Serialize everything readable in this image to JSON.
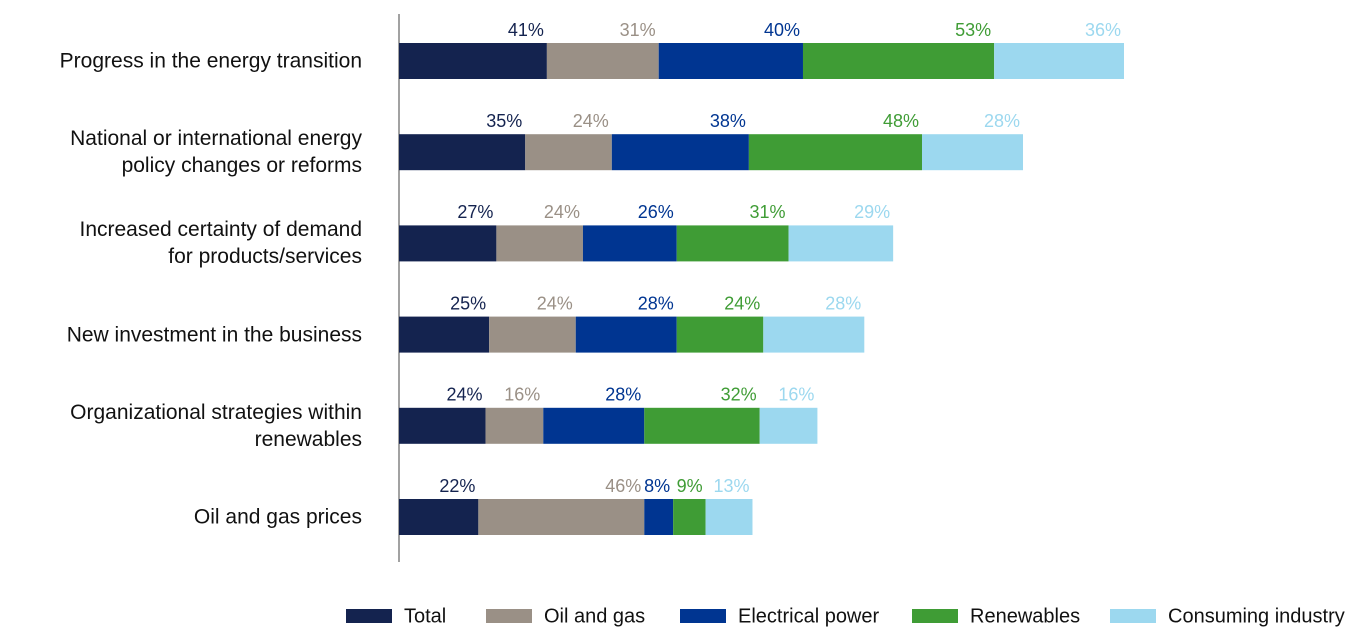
{
  "chart_data": {
    "type": "stacked-bar",
    "orientation": "horizontal",
    "categories": [
      "Progress in the energy transition",
      "National or international energy\npolicy changes or reforms",
      "Increased certainty of demand\nfor products/services",
      "New investment in the business",
      "Organizational strategies within\nrenewables",
      "Oil and gas prices"
    ],
    "series": [
      {
        "name": "Total",
        "color": "#14234f",
        "values": [
          41,
          35,
          27,
          25,
          24,
          22
        ],
        "value_labels": [
          "41%",
          "35%",
          "27%",
          "25%",
          "24%",
          "22%"
        ]
      },
      {
        "name": "Oil and gas",
        "color": "#9a9086",
        "values": [
          31,
          24,
          24,
          24,
          16,
          46
        ],
        "value_labels": [
          "31%",
          "24%",
          "24%",
          "24%",
          "16%",
          "46%"
        ]
      },
      {
        "name": "Electrical power",
        "color": "#003591",
        "values": [
          40,
          38,
          26,
          28,
          28,
          8
        ],
        "value_labels": [
          "40%",
          "38%",
          "26%",
          "28%",
          "28%",
          "8%"
        ]
      },
      {
        "name": "Renewables",
        "color": "#3f9c35",
        "values": [
          53,
          48,
          31,
          24,
          32,
          9
        ],
        "value_labels": [
          "53%",
          "48%",
          "31%",
          "24%",
          "32%",
          "9%"
        ]
      },
      {
        "name": "Consuming industry",
        "color": "#9cd8ef",
        "values": [
          36,
          28,
          29,
          28,
          16,
          13
        ],
        "value_labels": [
          "36%",
          "28%",
          "29%",
          "28%",
          "16%",
          "13%"
        ]
      }
    ],
    "legend": "bottom"
  }
}
